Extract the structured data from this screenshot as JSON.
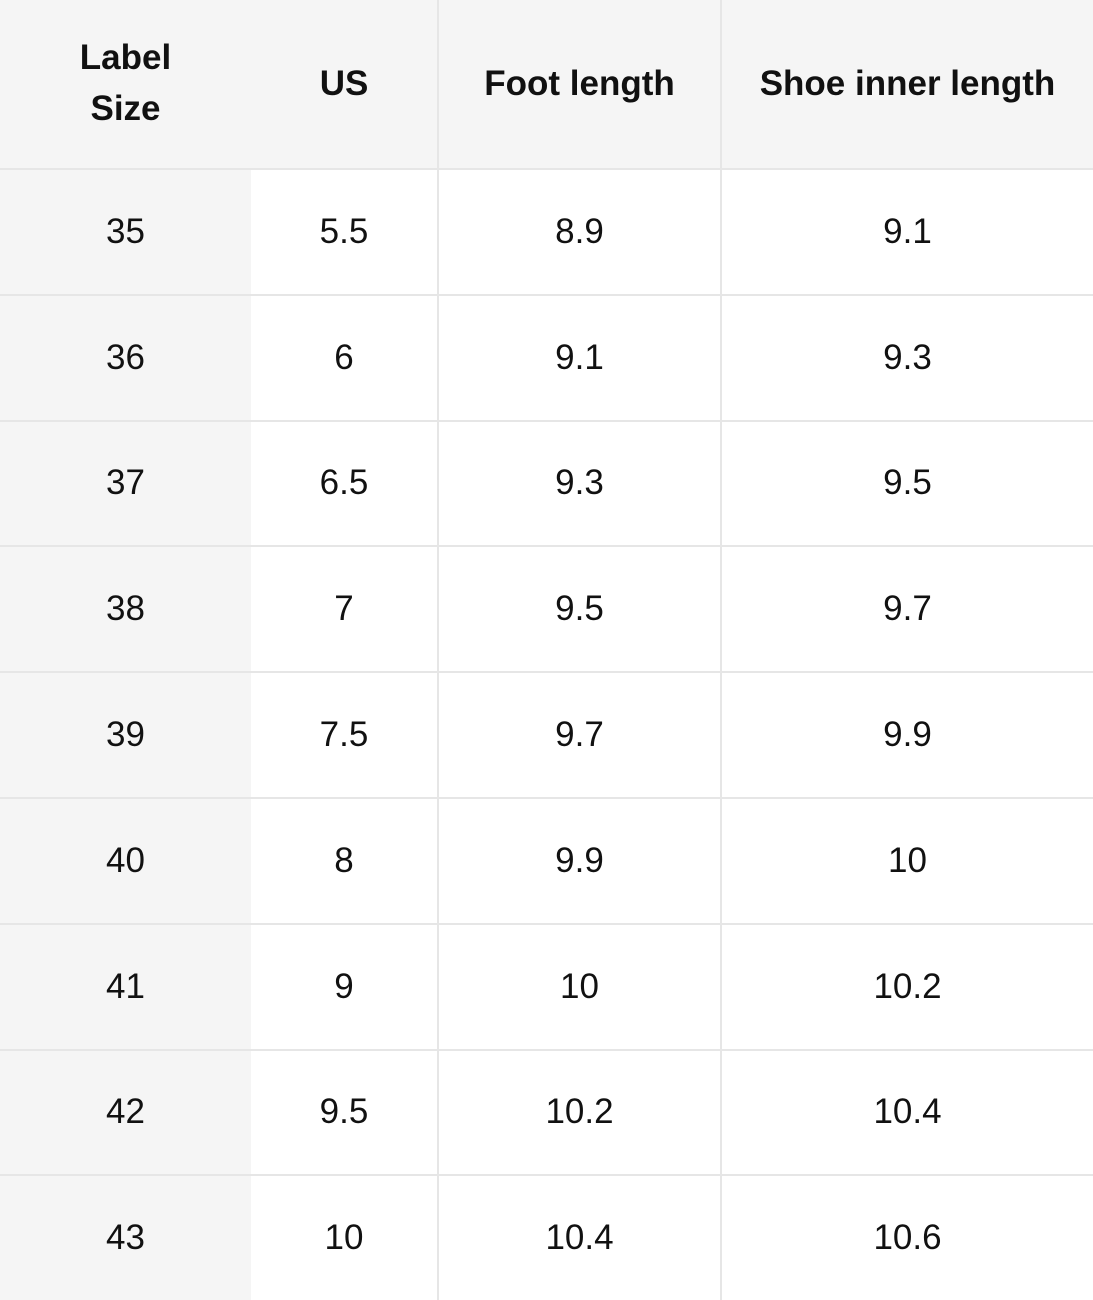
{
  "headers": [
    "Label Size",
    "US",
    "Foot length",
    "Shoe inner length"
  ],
  "rows": [
    [
      "35",
      "5.5",
      "8.9",
      "9.1"
    ],
    [
      "36",
      "6",
      "9.1",
      "9.3"
    ],
    [
      "37",
      "6.5",
      "9.3",
      "9.5"
    ],
    [
      "38",
      "7",
      "9.5",
      "9.7"
    ],
    [
      "39",
      "7.5",
      "9.7",
      "9.9"
    ],
    [
      "40",
      "8",
      "9.9",
      "10"
    ],
    [
      "41",
      "9",
      "10",
      "10.2"
    ],
    [
      "42",
      "9.5",
      "10.2",
      "10.4"
    ],
    [
      "43",
      "10",
      "10.4",
      "10.6"
    ]
  ],
  "colors": {
    "header_bg": "#f5f5f5",
    "border": "#e6e6e6",
    "text": "#111111"
  }
}
